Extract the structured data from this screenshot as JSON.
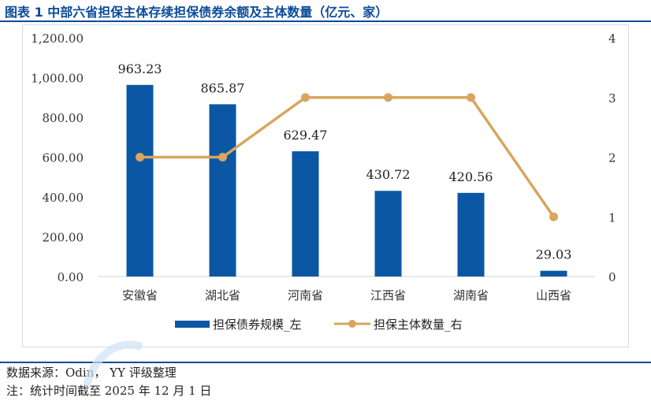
{
  "title": "图表 1 中部六省担保主体存续担保债券余额及主体数量（亿元、家）",
  "footer": {
    "source": "数据来源：Odin， YY 评级整理",
    "note": "注：统计时间截至 2025 年 12 月 1 日"
  },
  "colors": {
    "bar": "#0b57a4",
    "line": "#d9a55f",
    "title": "#0b4a99"
  },
  "chart_data": {
    "type": "bar",
    "categories": [
      "安徽省",
      "湖北省",
      "河南省",
      "江西省",
      "湖南省",
      "山西省"
    ],
    "series": [
      {
        "name": "担保债券规模_左",
        "type": "bar",
        "axis": "left",
        "values": [
          963.23,
          865.87,
          629.47,
          430.72,
          420.56,
          29.03
        ],
        "labels": [
          "963.23",
          "865.87",
          "629.47",
          "430.72",
          "420.56",
          "29.03"
        ]
      },
      {
        "name": "担保主体数量_右",
        "type": "line",
        "axis": "right",
        "values": [
          2,
          2,
          3,
          3,
          3,
          1
        ]
      }
    ],
    "y_left": {
      "ylim": [
        0,
        1200
      ],
      "ticks": [
        "0.00",
        "200.00",
        "400.00",
        "600.00",
        "800.00",
        "1,000.00",
        "1,200.00"
      ]
    },
    "y_right": {
      "ylim": [
        0,
        4
      ],
      "ticks": [
        "0",
        "1",
        "2",
        "3",
        "4"
      ]
    },
    "grid": false,
    "legend_position": "bottom"
  }
}
